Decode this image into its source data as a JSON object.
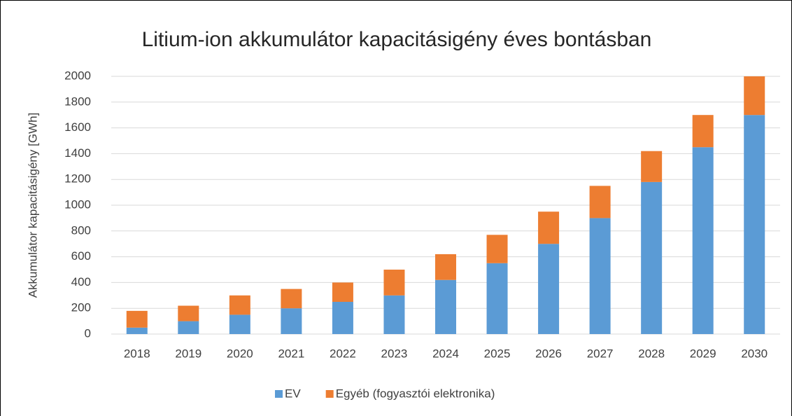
{
  "chart_data": {
    "type": "bar",
    "stacked": true,
    "title": "Litium-ion akkumulátor kapacitásigény éves bontásban",
    "y_label": "Akkumulátor kapacitásigény [GWh]",
    "categories": [
      "2018",
      "2019",
      "2020",
      "2021",
      "2022",
      "2023",
      "2024",
      "2025",
      "2026",
      "2027",
      "2028",
      "2029",
      "2030"
    ],
    "series": [
      {
        "name": "EV",
        "color": "#5b9bd5",
        "values": [
          50,
          100,
          150,
          200,
          250,
          300,
          420,
          550,
          700,
          900,
          1180,
          1450,
          1700
        ]
      },
      {
        "name": "Egyéb (fogyasztói elektronika)",
        "color": "#ed7d31",
        "values": [
          130,
          120,
          150,
          150,
          150,
          200,
          200,
          220,
          250,
          250,
          240,
          250,
          300
        ]
      }
    ],
    "ylim": [
      0,
      2000
    ],
    "yticks": [
      0,
      200,
      400,
      600,
      800,
      1000,
      1200,
      1400,
      1600,
      1800,
      2000
    ],
    "grid": true,
    "legend": "bottom"
  }
}
